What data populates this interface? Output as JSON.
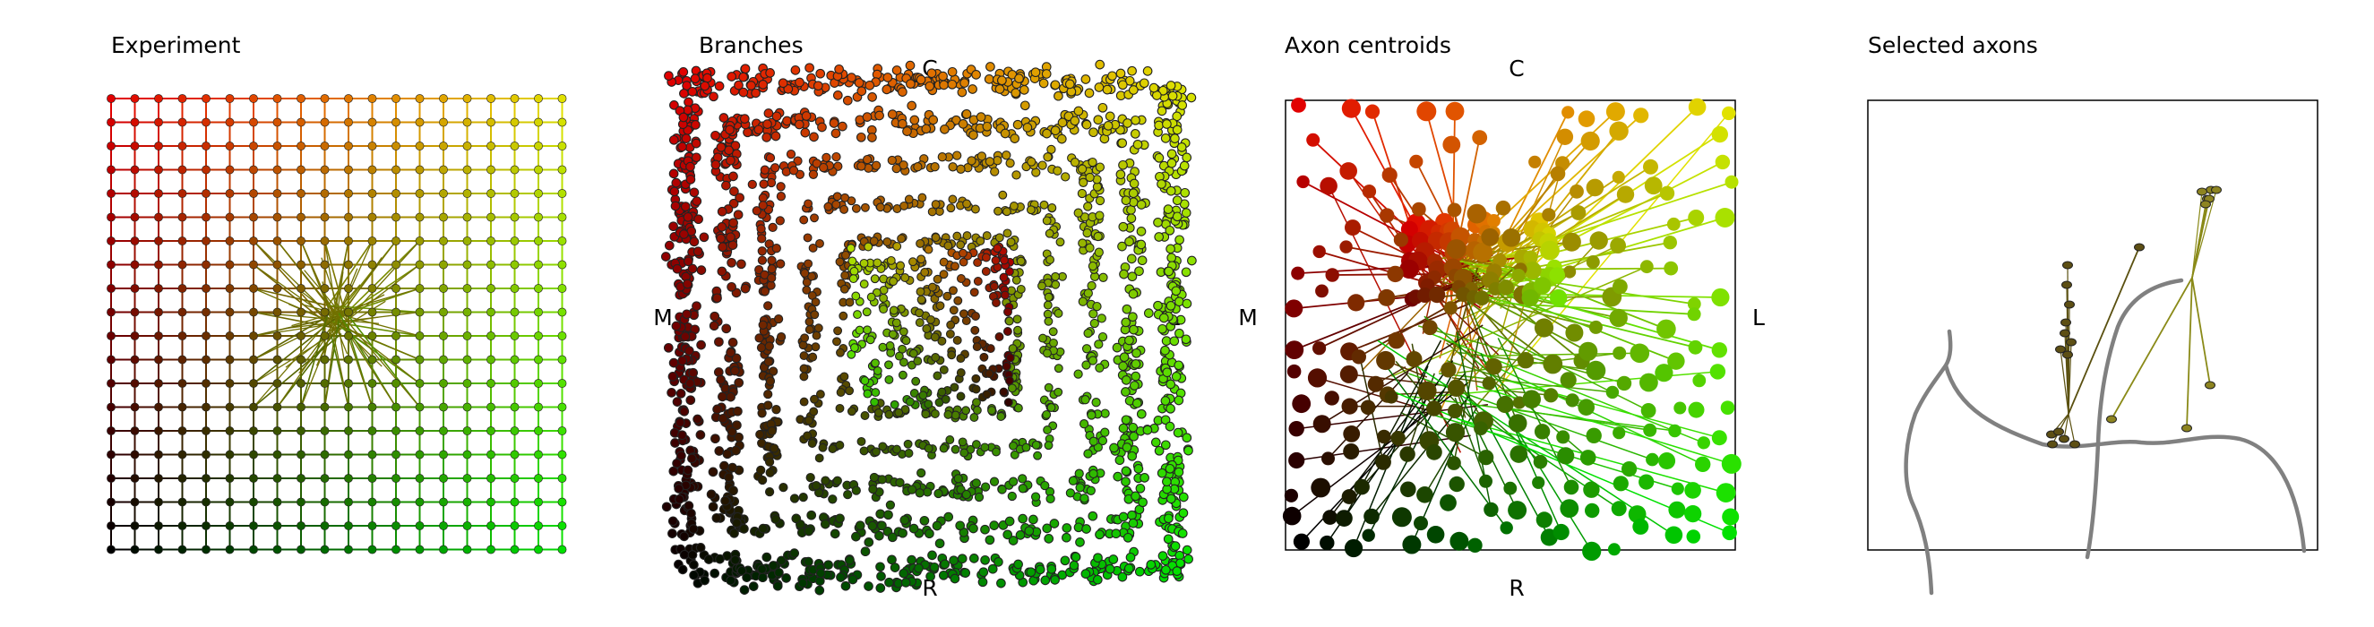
{
  "panels": {
    "experiment": {
      "title": "Experiment"
    },
    "branches": {
      "title": "Branches",
      "labels": {
        "top": "C",
        "bottom": "R",
        "left": "M",
        "right": "L"
      }
    },
    "centroids": {
      "title": "Axon centroids",
      "labels": {
        "top": "C",
        "bottom": "R",
        "left": "M",
        "right": "L"
      }
    },
    "selected": {
      "title": "Selected axons"
    }
  },
  "colors": {
    "corner_top_left": "#e00000",
    "corner_top_right": "#e0e000",
    "corner_bottom_left": "#000000",
    "corner_bottom_right": "#00e000",
    "node_outline": "#222222",
    "contour": "#808080",
    "frame": "#000000"
  }
}
